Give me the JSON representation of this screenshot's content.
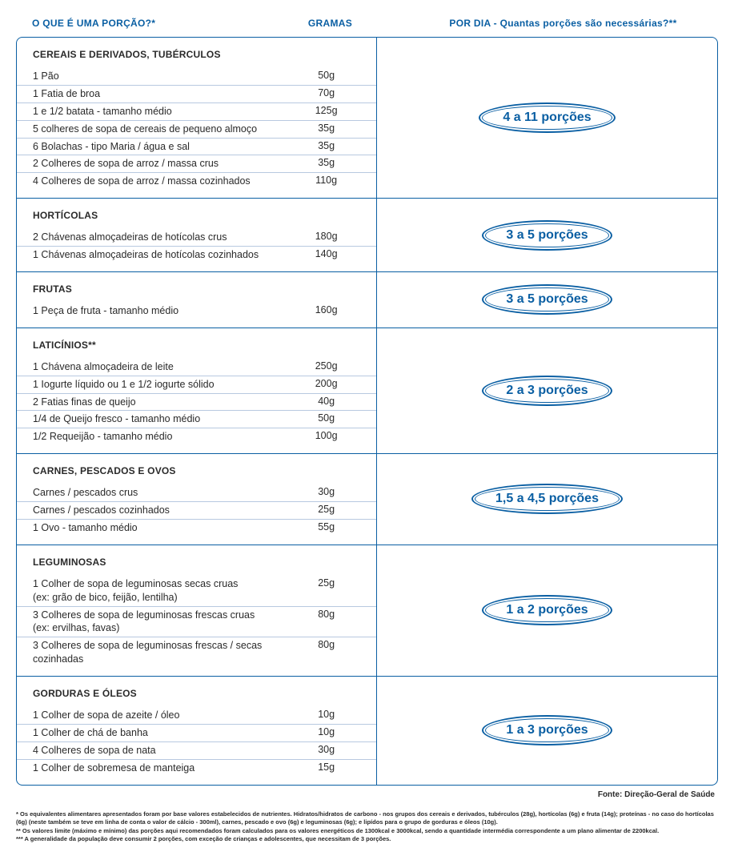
{
  "header": {
    "col1": "O QUE É UMA PORÇÃO?*",
    "col2": "GRAMAS",
    "col3": "POR DIA - Quantas porções são necessárias?**"
  },
  "colors": {
    "primary": "#0a5fa3",
    "text": "#2a2a2a",
    "row_border": "#b8c9e0",
    "background": "#ffffff"
  },
  "sections": [
    {
      "title": "CEREAIS E DERIVADOS, TUBÉRCULOS",
      "portion": "4 a 11 porções",
      "items": [
        {
          "label": "1 Pão",
          "grams": "50g"
        },
        {
          "label": "1 Fatia de broa",
          "grams": "70g"
        },
        {
          "label": "1 e 1/2 batata - tamanho médio",
          "grams": "125g"
        },
        {
          "label": "5 colheres de sopa de cereais de pequeno almoço",
          "grams": "35g"
        },
        {
          "label": "6 Bolachas - tipo Maria / água e sal",
          "grams": "35g"
        },
        {
          "label": "2 Colheres de sopa de arroz / massa crus",
          "grams": "35g"
        },
        {
          "label": "4 Colheres de sopa de arroz / massa cozinhados",
          "grams": "110g"
        }
      ]
    },
    {
      "title": "HORTÍCOLAS",
      "portion": "3 a 5 porções",
      "items": [
        {
          "label": "2 Chávenas almoçadeiras de hotícolas crus",
          "grams": "180g"
        },
        {
          "label": "1 Chávenas almoçadeiras de hotícolas cozinhados",
          "grams": "140g"
        }
      ]
    },
    {
      "title": "FRUTAS",
      "portion": "3 a 5 porções",
      "items": [
        {
          "label": "1 Peça de fruta - tamanho médio",
          "grams": "160g"
        }
      ]
    },
    {
      "title": "LATICÍNIOS**",
      "portion": "2 a 3 porções",
      "items": [
        {
          "label": "1 Chávena almoçadeira de leite",
          "grams": "250g"
        },
        {
          "label": "1 Iogurte líquido ou 1 e 1/2 iogurte sólido",
          "grams": "200g"
        },
        {
          "label": "2 Fatias finas de queijo",
          "grams": "40g"
        },
        {
          "label": "1/4 de Queijo fresco - tamanho médio",
          "grams": "50g"
        },
        {
          "label": "1/2 Requeijão - tamanho médio",
          "grams": "100g"
        }
      ]
    },
    {
      "title": "CARNES, PESCADOS E OVOS",
      "portion": "1,5 a 4,5 porções",
      "items": [
        {
          "label": "Carnes / pescados crus",
          "grams": "30g"
        },
        {
          "label": "Carnes / pescados cozinhados",
          "grams": "25g"
        },
        {
          "label": "1 Ovo - tamanho médio",
          "grams": "55g"
        }
      ]
    },
    {
      "title": "LEGUMINOSAS",
      "portion": "1 a 2 porções",
      "items": [
        {
          "label": "1 Colher de sopa de leguminosas secas cruas\n(ex: grão de bico, feijão, lentilha)",
          "grams": "25g"
        },
        {
          "label": "3 Colheres de sopa de leguminosas frescas cruas\n(ex: ervilhas, favas)",
          "grams": "80g"
        },
        {
          "label": "3 Colheres de sopa de leguminosas frescas / secas cozinhadas",
          "grams": "80g"
        }
      ]
    },
    {
      "title": "GORDURAS E ÓLEOS",
      "portion": "1 a 3 porções",
      "items": [
        {
          "label": "1 Colher de sopa de azeite / óleo",
          "grams": "10g"
        },
        {
          "label": "1 Colher de chá de banha",
          "grams": "10g"
        },
        {
          "label": "4 Colheres de sopa de nata",
          "grams": "30g"
        },
        {
          "label": "1 Colher de sobremesa de manteiga",
          "grams": "15g"
        }
      ]
    }
  ],
  "source": "Fonte: Direção-Geral de Saúde",
  "footnotes": [
    "* Os equivalentes alimentares apresentados foram por base valores estabelecidos de nutrientes. Hidratos/hidratos de carbono - nos grupos dos cereais e derivados, tubérculos (28g), hortícolas (6g) e fruta (14g); proteínas - no caso do hortícolas (6g) (neste também se teve em linha de conta o valor de cálcio - 300ml), carnes, pescado e ovo (6g) e leguminosas (6g); e lipídos para o grupo de gorduras e óleos (10g).",
    "** Os valores limite (máximo e mínimo) das porções aqui recomendados foram calculados para os valores energéticos de 1300kcal e 3000kcal, sendo a quantidade intermédia correspondente a um plano alimentar de 2200kcal.",
    "*** A generalidade da população deve consumir 2 porções, com exceção de crianças e adolescentes, que necessitam de 3 porções."
  ]
}
